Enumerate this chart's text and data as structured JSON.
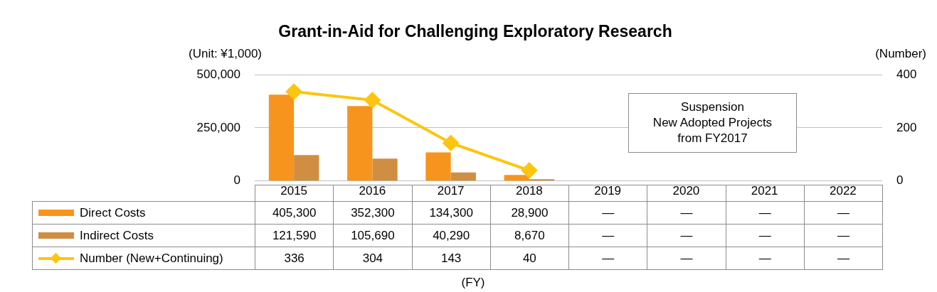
{
  "chart_data": {
    "type": "bar",
    "title": "Grant-in-Aid for Challenging Exploratory Research",
    "ylabel": "(Unit: ¥1,000)",
    "y2label": "(Number)",
    "categories": [
      "2015",
      "2016",
      "2017",
      "2018",
      "2019",
      "2020",
      "2021",
      "2022"
    ],
    "series": [
      {
        "name": "Direct Costs",
        "color": "#f7941d",
        "values": [
          405300,
          352300,
          134300,
          28900,
          null,
          null,
          null,
          null
        ],
        "value_labels": [
          "405,300",
          "352,300",
          "134,300",
          "28,900",
          "—",
          "—",
          "—",
          "—"
        ]
      },
      {
        "name": "Indirect Costs",
        "color": "#cf8e41",
        "values": [
          121590,
          105690,
          40290,
          8670,
          null,
          null,
          null,
          null
        ],
        "value_labels": [
          "121,590",
          "105,690",
          "40,290",
          "8,670",
          "—",
          "—",
          "—",
          "—"
        ]
      },
      {
        "name": "Number (New+Continuing)",
        "type": "line",
        "axis": "y2",
        "color": "#fcc50f",
        "values": [
          336,
          304,
          143,
          40,
          null,
          null,
          null,
          null
        ],
        "value_labels": [
          "336",
          "304",
          "143",
          "40",
          "—",
          "—",
          "—",
          "—"
        ]
      }
    ],
    "ylim": [
      0,
      500000
    ],
    "yticks": [
      {
        "value": 0,
        "label": "0"
      },
      {
        "value": 250000,
        "label": "250,000"
      },
      {
        "value": 500000,
        "label": "500,000"
      }
    ],
    "y2lim": [
      0,
      400
    ],
    "y2ticks": [
      0,
      200,
      400
    ],
    "annotations": [
      "Suspension\nNew Adopted Projects\nfrom FY2017",
      "(FY)"
    ],
    "grid": "y",
    "legend": "bottom left",
    "marker": "diamond",
    "line_style": "solid"
  }
}
